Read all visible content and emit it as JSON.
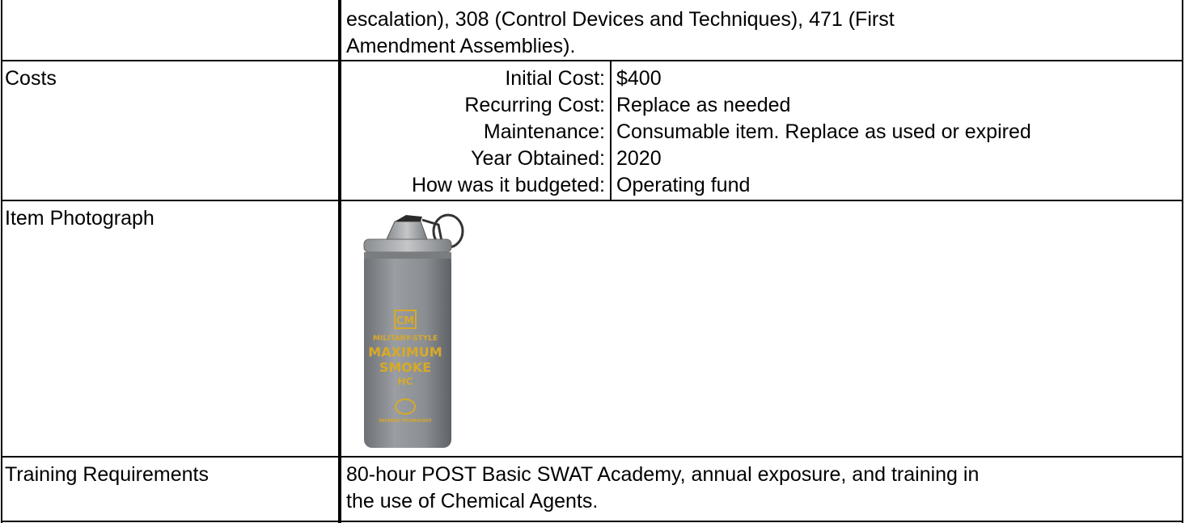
{
  "table": {
    "rows": [
      {
        "lines": [
          "escalation), 308 (Control Devices and Techniques), 471 (First",
          "Amendment Assemblies)."
        ]
      },
      {
        "label": "Costs",
        "items": [
          {
            "label": "Initial Cost:",
            "value": "$400"
          },
          {
            "label": "Recurring Cost:",
            "value": "Replace as needed"
          },
          {
            "label": "Maintenance:",
            "value": "Consumable item. Replace as used or expired"
          },
          {
            "label": "Year Obtained:",
            "value": "2020"
          },
          {
            "label": "How was it budgeted:",
            "value": "Operating fund"
          }
        ]
      },
      {
        "label": "Item Photograph",
        "photo": {
          "brand": "CM",
          "style": "MILITARY-STYLE",
          "name": [
            "MAXIMUM",
            "SMOKE",
            "HC"
          ],
          "maker": "DEFENSE TECHNOLOGY"
        }
      },
      {
        "label": "Training Requirements",
        "lines": [
          "80-hour POST Basic SWAT Academy, annual exposure, and training in",
          "the use of Chemical Agents."
        ]
      }
    ]
  }
}
